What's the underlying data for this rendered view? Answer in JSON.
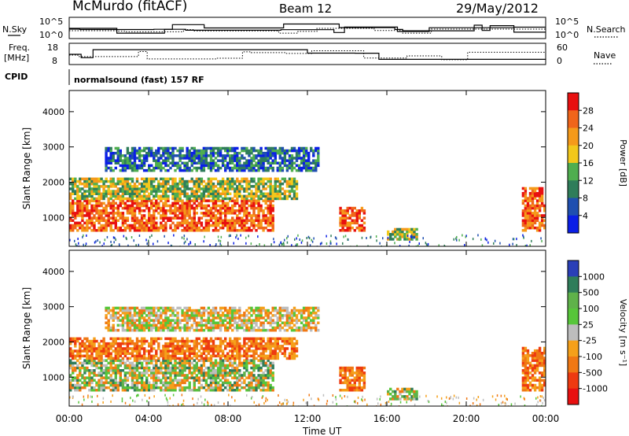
{
  "header": {
    "station": "McMurdo (fitACF)",
    "beam": "Beam 12",
    "date": "29/May/2012"
  },
  "panels": {
    "nsky_label": "N.Sky",
    "nsky_ticks": [
      "10^5",
      "10^0"
    ],
    "nsearch_label": "N.Search",
    "nsearch_ticks": [
      "10^5",
      "10^0"
    ],
    "freq_label_1": "Freq.",
    "freq_label_2": "[MHz]",
    "freq_ticks": [
      "18",
      "8"
    ],
    "nave_label": "Nave",
    "nave_ticks": [
      "60",
      "0"
    ],
    "cpid_label": "CPID",
    "cpid_value": "normalsound (fast) 157 RF"
  },
  "chart_data": [
    {
      "type": "heatmap",
      "title": "",
      "xlabel": "Time UT",
      "ylabel": "Slant Range [km]",
      "x_ticks": [
        "00:00",
        "04:00",
        "08:00",
        "12:00",
        "16:00",
        "20:00",
        "00:00"
      ],
      "y_ticks": [
        "1000",
        "2000",
        "3000",
        "4000"
      ],
      "xlim_hours": [
        0,
        24
      ],
      "ylim_km": [
        180,
        4600
      ],
      "colorbar": {
        "label": "Power [dB]",
        "ticks": [
          "4",
          "8",
          "12",
          "16",
          "20",
          "24",
          "28"
        ],
        "colors": [
          "#0a1ee6",
          "#1f4fb0",
          "#2f7d5a",
          "#4fae4f",
          "#f2c81b",
          "#f59a1a",
          "#f0651a",
          "#e81010"
        ]
      },
      "regions": [
        {
          "t0": 0.0,
          "t1": 10.2,
          "r0": 600,
          "r1": 1500,
          "level": "strong"
        },
        {
          "t0": 0.0,
          "t1": 11.5,
          "r0": 1500,
          "r1": 2100,
          "level": "moderate"
        },
        {
          "t0": 1.8,
          "t1": 12.5,
          "r0": 2300,
          "r1": 3000,
          "level": "weak"
        },
        {
          "t0": 13.6,
          "t1": 14.8,
          "r0": 600,
          "r1": 1300,
          "level": "strong"
        },
        {
          "t0": 16.0,
          "t1": 17.5,
          "r0": 350,
          "r1": 700,
          "level": "moderate"
        },
        {
          "t0": 22.8,
          "t1": 24.0,
          "r0": 600,
          "r1": 1800,
          "level": "strong"
        }
      ]
    },
    {
      "type": "heatmap",
      "title": "",
      "xlabel": "Time UT",
      "ylabel": "Slant Range [km]",
      "x_ticks": [
        "00:00",
        "04:00",
        "08:00",
        "12:00",
        "16:00",
        "20:00",
        "00:00"
      ],
      "y_ticks": [
        "1000",
        "2000",
        "3000",
        "4000"
      ],
      "xlim_hours": [
        0,
        24
      ],
      "ylim_km": [
        180,
        4600
      ],
      "colorbar": {
        "label": "Velocity [m s⁻¹]",
        "ticks": [
          "1000",
          "500",
          "100",
          "25",
          "-25",
          "-100",
          "-500",
          "-1000"
        ],
        "colors": [
          "#2a3fb8",
          "#2f7d5a",
          "#5fb24a",
          "#57c63a",
          "#bdbdbd",
          "#f5a01a",
          "#f07814",
          "#ee3a10",
          "#e81010"
        ]
      },
      "regions": [
        {
          "t0": 0.0,
          "t1": 10.2,
          "r0": 600,
          "r1": 1500,
          "level": "mixed"
        },
        {
          "t0": 0.0,
          "t1": 11.5,
          "r0": 1500,
          "r1": 2100,
          "level": "toward"
        },
        {
          "t0": 1.8,
          "t1": 12.5,
          "r0": 2300,
          "r1": 3000,
          "level": "low"
        },
        {
          "t0": 13.6,
          "t1": 14.8,
          "r0": 600,
          "r1": 1300,
          "level": "toward"
        },
        {
          "t0": 16.0,
          "t1": 17.5,
          "r0": 350,
          "r1": 700,
          "level": "mixed"
        },
        {
          "t0": 22.8,
          "t1": 24.0,
          "r0": 600,
          "r1": 1800,
          "level": "toward"
        }
      ]
    }
  ]
}
